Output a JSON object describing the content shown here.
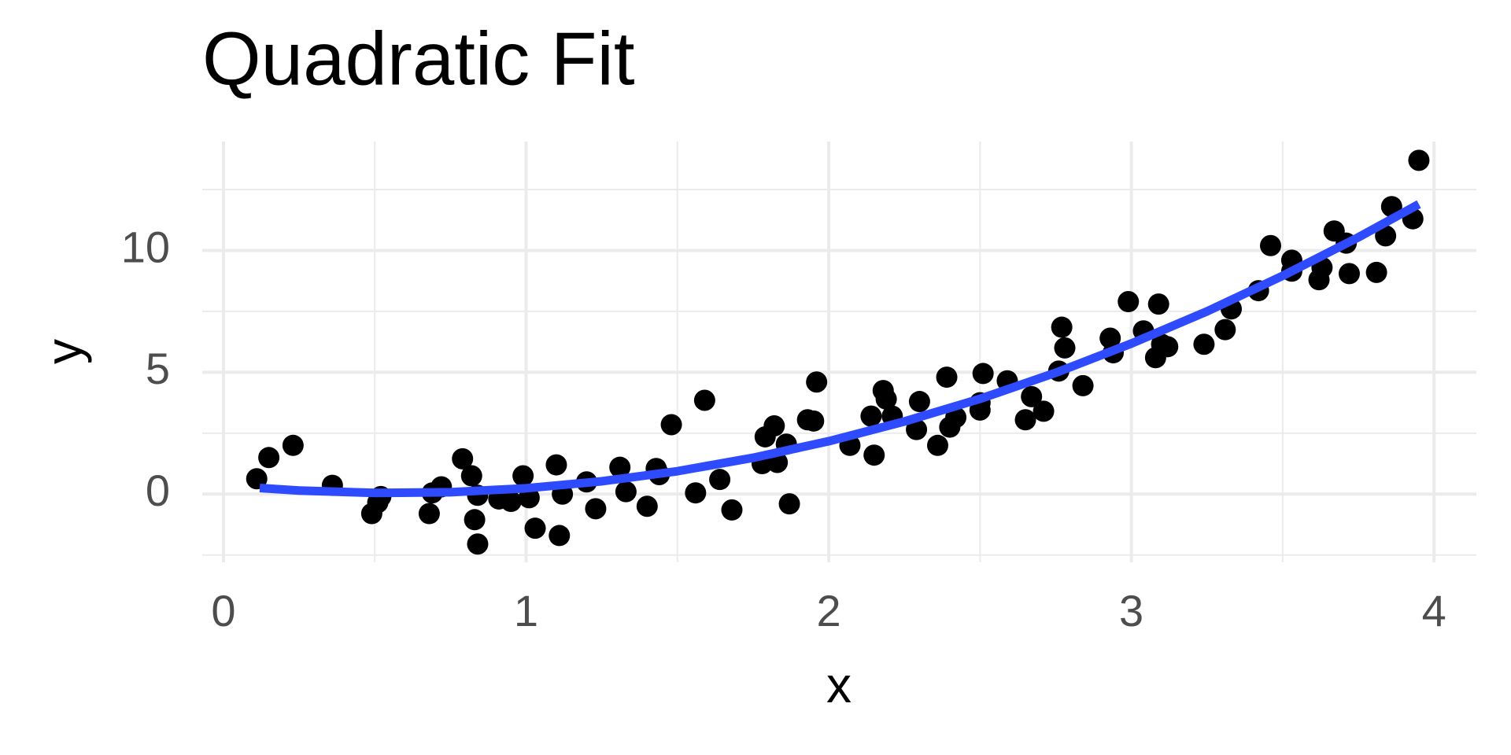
{
  "chart_data": {
    "type": "scatter",
    "title": "Quadratic Fit",
    "x_label": "x",
    "y_label": "y",
    "xlim": [
      -0.07,
      4.14
    ],
    "ylim": [
      -2.8,
      14.47
    ],
    "xticks": [
      0,
      1,
      2,
      3,
      4
    ],
    "yticks": [
      0,
      5,
      10
    ],
    "grid": true,
    "series": [
      {
        "type": "scatter",
        "color": "#000000",
        "x": [
          0.11,
          0.15,
          0.23,
          0.36,
          0.49,
          0.51,
          0.52,
          0.68,
          0.69,
          0.72,
          0.79,
          0.82,
          0.83,
          0.84,
          0.84,
          0.91,
          0.95,
          0.99,
          1.01,
          1.03,
          1.1,
          1.11,
          1.12,
          1.2,
          1.23,
          1.31,
          1.33,
          1.4,
          1.43,
          1.44,
          1.48,
          1.56,
          1.59,
          1.64,
          1.68,
          1.78,
          1.79,
          1.82,
          1.83,
          1.86,
          1.87,
          1.93,
          1.95,
          1.96,
          2.07,
          2.14,
          2.15,
          2.18,
          2.19,
          2.21,
          2.29,
          2.3,
          2.36,
          2.39,
          2.4,
          2.42,
          2.5,
          2.5,
          2.51,
          2.59,
          2.65,
          2.67,
          2.71,
          2.76,
          2.77,
          2.78,
          2.84,
          2.93,
          2.94,
          2.99,
          3.04,
          3.08,
          3.09,
          3.1,
          3.12,
          3.24,
          3.31,
          3.33,
          3.42,
          3.46,
          3.53,
          3.53,
          3.62,
          3.63,
          3.67,
          3.71,
          3.72,
          3.81,
          3.84,
          3.86,
          3.93,
          3.95
        ],
        "values": [
          0.63,
          1.5,
          2.0,
          0.36,
          -0.8,
          -0.35,
          -0.1,
          -0.8,
          0.05,
          0.3,
          1.45,
          0.75,
          -1.05,
          -2.05,
          -0.05,
          -0.2,
          -0.3,
          0.75,
          -0.15,
          -1.4,
          1.2,
          -1.7,
          0.0,
          0.5,
          -0.6,
          1.1,
          0.1,
          -0.5,
          1.05,
          0.8,
          2.85,
          0.05,
          3.85,
          0.6,
          -0.65,
          1.25,
          2.35,
          2.8,
          1.3,
          2.05,
          -0.4,
          3.05,
          3.0,
          4.6,
          2.0,
          3.2,
          1.6,
          4.25,
          3.9,
          3.2,
          2.65,
          3.8,
          2.0,
          4.8,
          2.75,
          3.15,
          3.45,
          3.75,
          4.95,
          4.65,
          3.05,
          4.0,
          3.4,
          5.05,
          6.85,
          6.0,
          4.45,
          6.4,
          5.8,
          7.9,
          6.7,
          5.6,
          7.8,
          6.15,
          6.05,
          6.15,
          6.75,
          7.6,
          8.35,
          10.2,
          9.6,
          9.15,
          8.8,
          9.3,
          10.8,
          10.3,
          9.05,
          9.1,
          10.6,
          11.8,
          11.3,
          13.7
        ]
      },
      {
        "type": "line",
        "color": "#2e4bff",
        "x": [
          0.12,
          0.25,
          0.5,
          0.75,
          1,
          1.25,
          1.5,
          1.75,
          2,
          2.25,
          2.5,
          2.75,
          3,
          3.25,
          3.5,
          3.75,
          3.95
        ],
        "values": [
          0.25,
          0.147,
          0.047,
          0.077,
          0.24,
          0.526,
          0.94,
          1.49,
          2.17,
          2.98,
          3.91,
          4.98,
          6.18,
          7.5,
          8.96,
          10.54,
          11.9
        ]
      }
    ]
  }
}
